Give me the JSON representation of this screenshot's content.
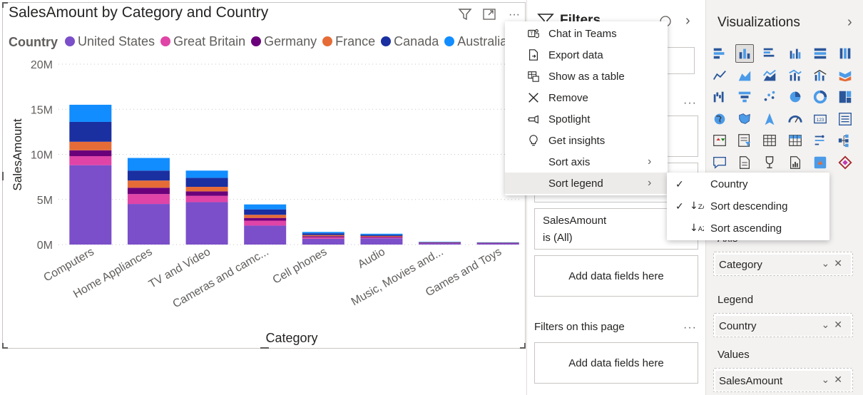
{
  "visual": {
    "title": "SalesAmount by Category and Country",
    "header_icons": [
      "filter-icon",
      "focus-mode-icon",
      "more-options-icon"
    ],
    "more_glyph": "···"
  },
  "legend": {
    "title": "Country",
    "items": [
      {
        "label": "United States",
        "color": "#7b4fc9"
      },
      {
        "label": "Great Britain",
        "color": "#e044a7"
      },
      {
        "label": "Germany",
        "color": "#6b007b"
      },
      {
        "label": "France",
        "color": "#e66c37"
      },
      {
        "label": "Canada",
        "color": "#1a2fa0"
      },
      {
        "label": "Australia",
        "color": "#118dff"
      }
    ]
  },
  "chart_data": {
    "type": "bar",
    "stacked": true,
    "xlabel": "Category",
    "ylabel": "SalesAmount",
    "ylim": [
      0,
      20000000
    ],
    "yticks": [
      0,
      5000000,
      10000000,
      15000000,
      20000000
    ],
    "ytick_labels": [
      "0M",
      "5M",
      "10M",
      "15M",
      "20M"
    ],
    "grid": true,
    "legend_position": "top",
    "categories": [
      "Computers",
      "Home Appliances",
      "TV and Video",
      "Cameras and camc...",
      "Cell phones",
      "Audio",
      "Music, Movies and...",
      "Games and Toys"
    ],
    "series": [
      {
        "name": "United States",
        "color": "#7b4fc9",
        "values": [
          8800000,
          4500000,
          4700000,
          2100000,
          650000,
          700000,
          160000,
          140000
        ]
      },
      {
        "name": "Great Britain",
        "color": "#e044a7",
        "values": [
          1000000,
          1100000,
          700000,
          550000,
          160000,
          100000,
          30000,
          25000
        ]
      },
      {
        "name": "Germany",
        "color": "#6b007b",
        "values": [
          650000,
          700000,
          500000,
          300000,
          120000,
          70000,
          20000,
          15000
        ]
      },
      {
        "name": "France",
        "color": "#e66c37",
        "values": [
          950000,
          800000,
          500000,
          350000,
          120000,
          80000,
          25000,
          20000
        ]
      },
      {
        "name": "Canada",
        "color": "#1a2fa0",
        "values": [
          2200000,
          1100000,
          1000000,
          600000,
          200000,
          130000,
          35000,
          30000
        ]
      },
      {
        "name": "Australia",
        "color": "#118dff",
        "values": [
          1900000,
          1400000,
          800000,
          550000,
          150000,
          120000,
          30000,
          20000
        ]
      }
    ]
  },
  "context_menu": {
    "items": [
      {
        "label": "Chat in Teams",
        "icon": "teams-icon"
      },
      {
        "label": "Export data",
        "icon": "export-icon"
      },
      {
        "label": "Show as a table",
        "icon": "table-view-icon"
      },
      {
        "label": "Remove",
        "icon": "close-icon"
      },
      {
        "label": "Spotlight",
        "icon": "spotlight-icon"
      },
      {
        "label": "Get insights",
        "icon": "lightbulb-icon"
      },
      {
        "label": "Sort axis",
        "icon": "",
        "submenu": true
      },
      {
        "label": "Sort legend",
        "icon": "",
        "submenu": true,
        "active": true
      }
    ]
  },
  "submenu": {
    "items": [
      {
        "label": "Country",
        "checked": true,
        "icon": ""
      },
      {
        "label": "Sort descending",
        "checked": true,
        "icon": "sort-descending-icon"
      },
      {
        "label": "Sort ascending",
        "checked": false,
        "icon": "sort-ascending-icon"
      }
    ]
  },
  "filters_pane": {
    "title": "Filters",
    "filter_card": {
      "line1": "SalesAmount",
      "line2": "is (All)"
    },
    "add_fields_1": "Add data fields here",
    "page_section_label": "Filters on this page",
    "add_fields_2": "Add data fields here"
  },
  "viz_pane": {
    "title": "Visualizations",
    "wells": [
      {
        "label": "Axis",
        "field": "Category"
      },
      {
        "label": "Legend",
        "field": "Country"
      },
      {
        "label": "Values",
        "field": "SalesAmount"
      }
    ]
  }
}
